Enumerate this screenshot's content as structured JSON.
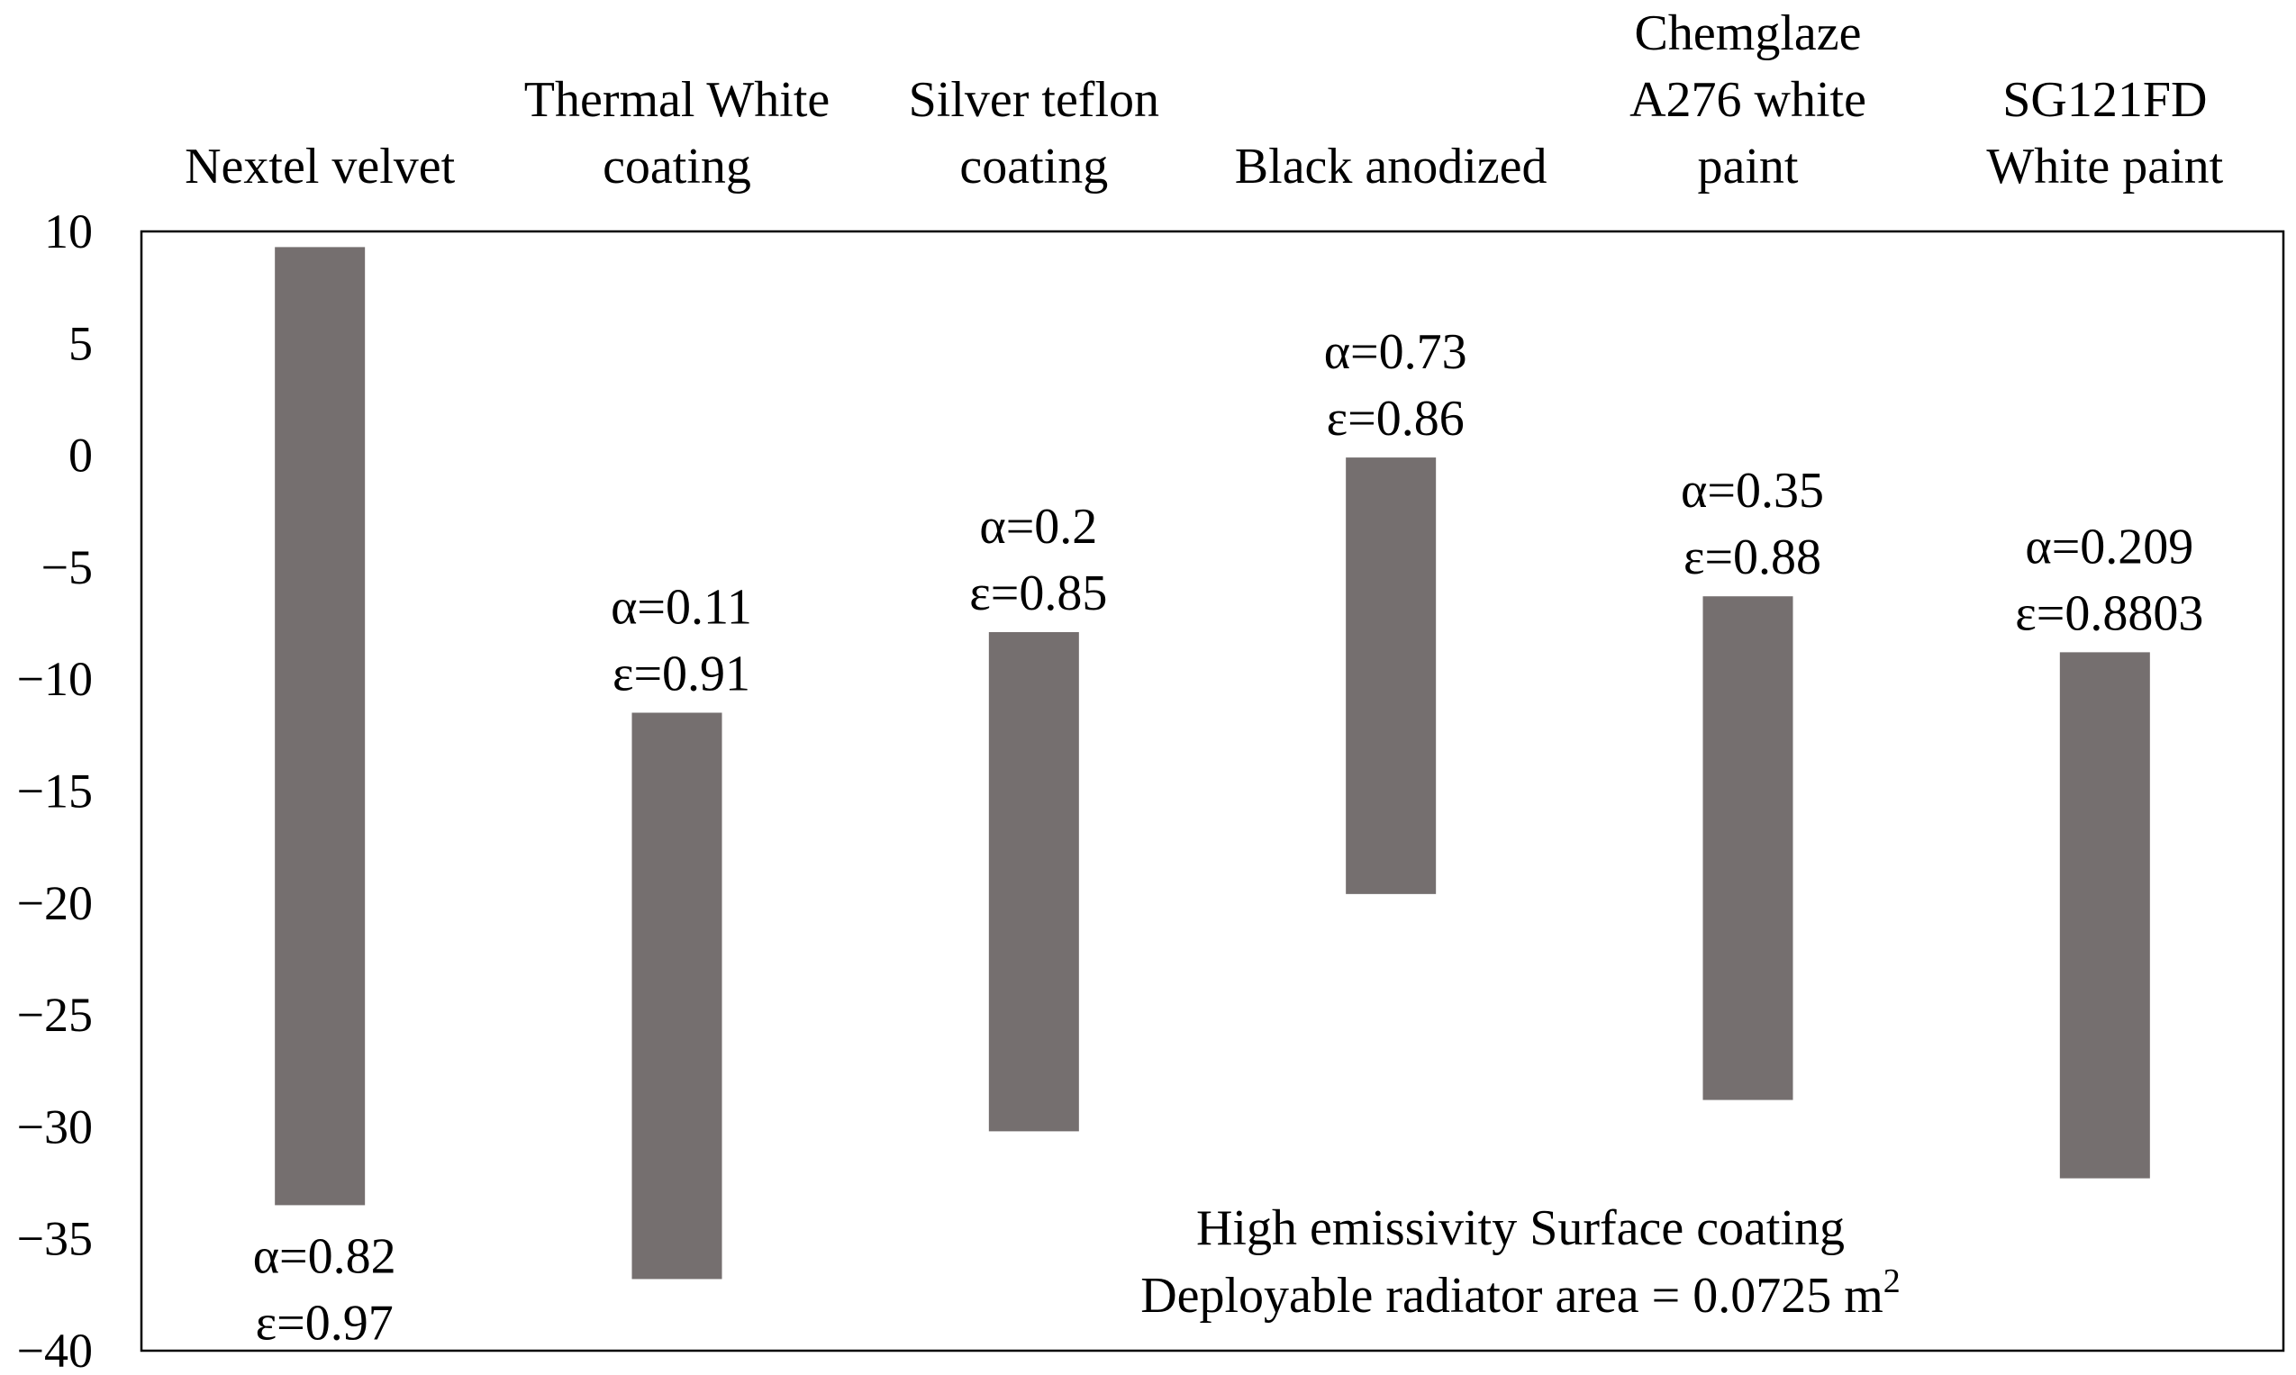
{
  "chart_data": {
    "type": "bar",
    "subtype": "floating-range",
    "title": "",
    "xlabel": "",
    "ylabel": "",
    "ylim": [
      -40,
      10
    ],
    "yticks": [
      10,
      5,
      0,
      -5,
      -10,
      -15,
      -20,
      -25,
      -30,
      -35,
      -40
    ],
    "ytick_labels": [
      "10",
      "5",
      "0",
      "−5",
      "−10",
      "−15",
      "−20",
      "−25",
      "−30",
      "−35",
      "−40"
    ],
    "grid": false,
    "x_axis_position": "top",
    "bar_color": "#756f6f",
    "categories": [
      {
        "label_lines": [
          "Nextel velvet"
        ],
        "min": -33.5,
        "max": 9.3,
        "alpha": "α=0.82",
        "epsilon": "ε=0.97",
        "annotation_position": "below"
      },
      {
        "label_lines": [
          "Thermal White",
          "coating"
        ],
        "min": -36.8,
        "max": -11.5,
        "alpha": "α=0.11",
        "epsilon": "ε=0.91",
        "annotation_position": "above"
      },
      {
        "label_lines": [
          "Silver teflon",
          "coating"
        ],
        "min": -30.2,
        "max": -7.9,
        "alpha": "α=0.2",
        "epsilon": "ε=0.85",
        "annotation_position": "above"
      },
      {
        "label_lines": [
          "Black anodized"
        ],
        "min": -19.6,
        "max": -0.1,
        "alpha": "α=0.73",
        "epsilon": "ε=0.86",
        "annotation_position": "above"
      },
      {
        "label_lines": [
          "Chemglaze",
          "A276 white",
          "paint"
        ],
        "min": -28.8,
        "max": -6.3,
        "alpha": "α=0.35",
        "epsilon": "ε=0.88",
        "annotation_position": "above"
      },
      {
        "label_lines": [
          "SG121FD",
          "White paint"
        ],
        "min": -32.3,
        "max": -8.8,
        "alpha": "α=0.209",
        "epsilon": "ε=0.8803",
        "annotation_position": "above"
      }
    ],
    "annotations": {
      "line1": "High emissivity Surface coating",
      "line2": "Deployable radiator area = 0.0725 m",
      "line2_superscript": "2"
    }
  }
}
